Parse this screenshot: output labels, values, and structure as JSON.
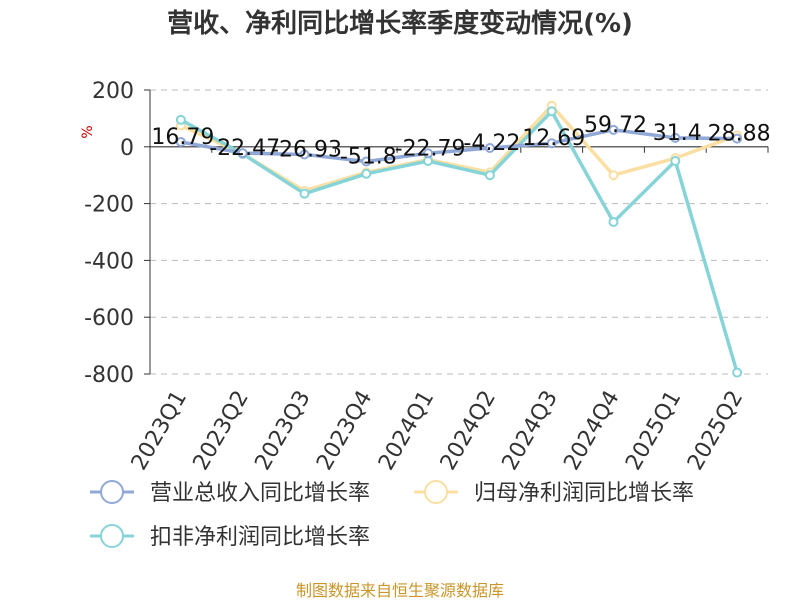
{
  "chart_data": {
    "type": "line",
    "title": "营收、净利同比增长率季度变动情况(%)",
    "unit": "%",
    "categories": [
      "2023Q1",
      "2023Q2",
      "2023Q3",
      "2023Q4",
      "2024Q1",
      "2024Q2",
      "2024Q3",
      "2024Q4",
      "2025Q1",
      "2025Q2"
    ],
    "ylim": [
      -800,
      200
    ],
    "yticks": [
      200,
      0,
      -200,
      -400,
      -600,
      -800
    ],
    "grid": true,
    "legend_position": "bottom",
    "series": [
      {
        "name": "营业总收入同比增长率",
        "color": "#8fa8d8",
        "values": [
          16.79,
          -22.47,
          -26.93,
          -51.8,
          -22.79,
          -4.22,
          12.69,
          59.72,
          31.4,
          28.88
        ],
        "labels": [
          "16.79",
          "-22.47",
          "-26.93",
          "-51.8",
          "-22.79",
          "-4.22",
          "12.69",
          "59.72",
          "31.4",
          "28.88"
        ]
      },
      {
        "name": "归母净利润同比增长率",
        "color": "#fbdfa2",
        "values": [
          75,
          -25,
          -155,
          -90,
          -45,
          -90,
          145,
          -100,
          -40,
          40
        ]
      },
      {
        "name": "扣非净利润同比增长率",
        "color": "#86d4d8",
        "values": [
          95,
          -25,
          -165,
          -95,
          -50,
          -100,
          125,
          -265,
          -50,
          -795
        ]
      }
    ]
  },
  "source": "制图数据来自恒生聚源数据库"
}
